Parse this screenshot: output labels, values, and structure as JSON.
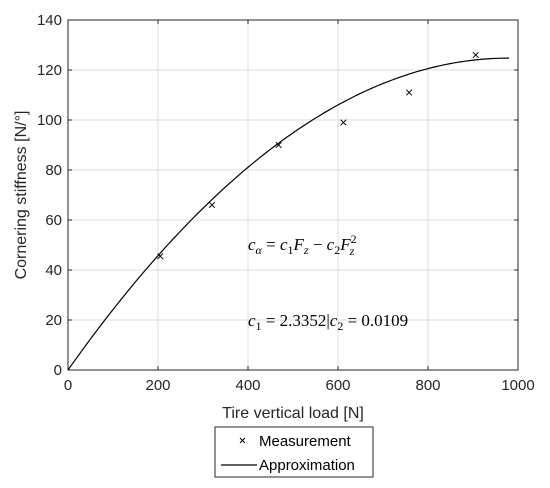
{
  "chart_data": {
    "type": "scatter",
    "xlabel": "Tire vertical load [N]",
    "ylabel": "Cornering stiffness [N/°]",
    "xlim": [
      0,
      1000
    ],
    "ylim": [
      0,
      140
    ],
    "xticks": [
      "0",
      "200",
      "400",
      "600",
      "800",
      "1000"
    ],
    "yticks": [
      "0",
      "20",
      "40",
      "60",
      "80",
      "100",
      "120",
      "140"
    ],
    "grid": true,
    "legend_position": "bottom-center, outside",
    "series": [
      {
        "name": "Measurement",
        "kind": "scatter",
        "marker": "x",
        "x": [
          205,
          320,
          468,
          612,
          758,
          906
        ],
        "y": [
          45.5,
          66,
          90,
          99,
          111,
          126
        ]
      },
      {
        "name": "Approximation",
        "kind": "line",
        "function": "c1*x - c2*x^2",
        "x_range": [
          0,
          980
        ],
        "c1": 2.3352,
        "c2": 0.0109
      }
    ],
    "annotations": [
      {
        "id": "formula",
        "text": "c_α = c₁F_z − c₂F_z²"
      },
      {
        "id": "coefficients",
        "text": "c₁ = 2.3352|c₂ = 0.0109"
      }
    ]
  }
}
